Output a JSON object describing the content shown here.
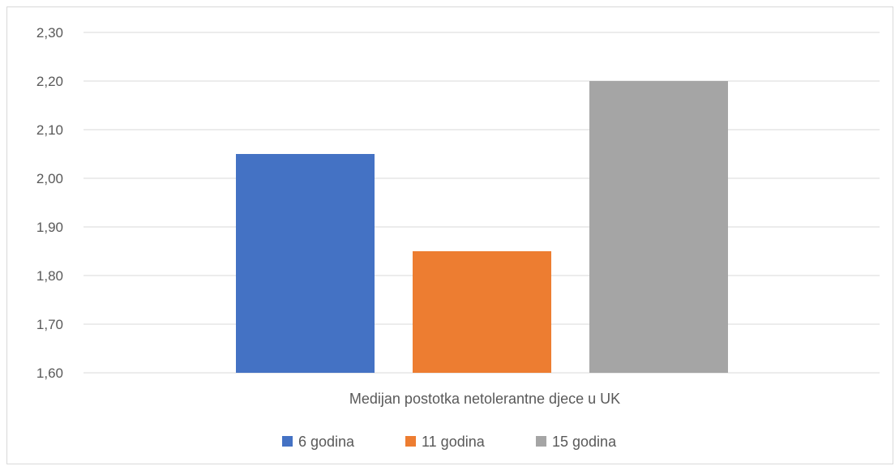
{
  "chart_data": {
    "type": "bar",
    "categories": [
      "Medijan postotka netolerantne djece u UK"
    ],
    "series": [
      {
        "name": "6 godina",
        "values": [
          2.05
        ],
        "color": "#4472c4"
      },
      {
        "name": "11 godina",
        "values": [
          1.85
        ],
        "color": "#ed7d31"
      },
      {
        "name": "15 godina",
        "values": [
          2.2
        ],
        "color": "#a5a5a5"
      }
    ],
    "ylim": [
      1.6,
      2.3
    ],
    "yticks": [
      "1,60",
      "1,70",
      "1,80",
      "1,90",
      "2,00",
      "2,10",
      "2,20",
      "2,30"
    ],
    "grid": true,
    "legend": "bottom"
  }
}
